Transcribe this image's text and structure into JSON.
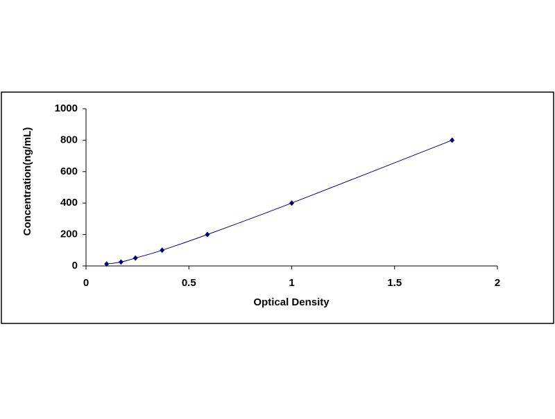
{
  "chart_data": {
    "type": "scatter",
    "line": true,
    "x_label": "Optical Density",
    "y_label": "Concentration(ng/mL)",
    "x": [
      0.1,
      0.17,
      0.24,
      0.37,
      0.59,
      1.0,
      1.78
    ],
    "values": [
      12.5,
      25,
      50,
      100,
      200,
      400,
      800
    ],
    "color": "#000080",
    "xlim": [
      0,
      2
    ],
    "xticks": [
      0,
      0.5,
      1,
      1.5,
      2
    ],
    "ylim": [
      0,
      1000
    ],
    "yticks": [
      0,
      200,
      400,
      600,
      800,
      1000
    ],
    "grid": false
  }
}
